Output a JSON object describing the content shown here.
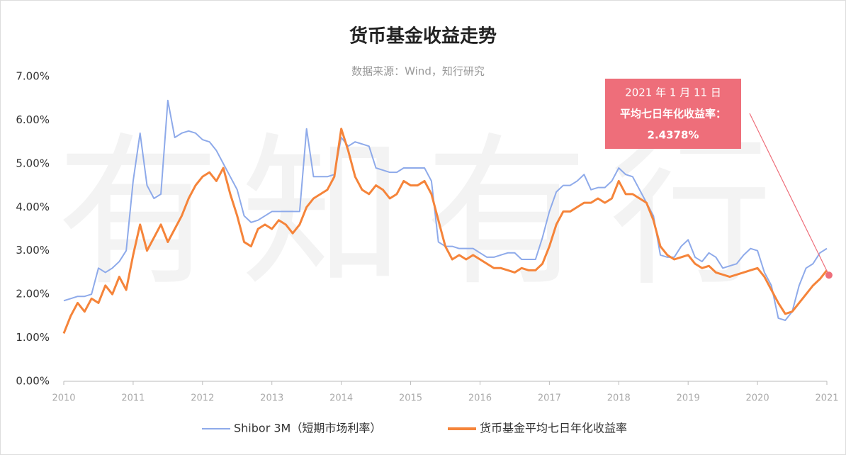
{
  "chart_data": {
    "type": "line",
    "title": "货币基金收益走势",
    "subtitle": "数据来源：Wind，知行研究",
    "watermark": "有知有行",
    "x": [
      2010,
      2010.1,
      2010.2,
      2010.3,
      2010.4,
      2010.5,
      2010.6,
      2010.7,
      2010.8,
      2010.9,
      2011,
      2011.1,
      2011.2,
      2011.3,
      2011.4,
      2011.5,
      2011.6,
      2011.7,
      2011.8,
      2011.9,
      2012,
      2012.1,
      2012.2,
      2012.3,
      2012.4,
      2012.5,
      2012.6,
      2012.7,
      2012.8,
      2012.9,
      2013,
      2013.1,
      2013.2,
      2013.3,
      2013.4,
      2013.5,
      2013.6,
      2013.7,
      2013.8,
      2013.9,
      2014,
      2014.1,
      2014.2,
      2014.3,
      2014.4,
      2014.5,
      2014.6,
      2014.7,
      2014.8,
      2014.9,
      2015,
      2015.1,
      2015.2,
      2015.3,
      2015.4,
      2015.5,
      2015.6,
      2015.7,
      2015.8,
      2015.9,
      2016,
      2016.1,
      2016.2,
      2016.3,
      2016.4,
      2016.5,
      2016.6,
      2016.7,
      2016.8,
      2016.9,
      2017,
      2017.1,
      2017.2,
      2017.3,
      2017.4,
      2017.5,
      2017.6,
      2017.7,
      2017.8,
      2017.9,
      2018,
      2018.1,
      2018.2,
      2018.3,
      2018.4,
      2018.5,
      2018.6,
      2018.7,
      2018.8,
      2018.9,
      2019,
      2019.1,
      2019.2,
      2019.3,
      2019.4,
      2019.5,
      2019.6,
      2019.7,
      2019.8,
      2019.9,
      2020,
      2020.1,
      2020.2,
      2020.3,
      2020.4,
      2020.5,
      2020.6,
      2020.7,
      2020.8,
      2020.9,
      2021
    ],
    "series": [
      {
        "name": "Shibor 3M（短期市场利率）",
        "color": "#8eaaea",
        "values": [
          1.85,
          1.9,
          1.95,
          1.95,
          2.0,
          2.6,
          2.5,
          2.6,
          2.75,
          3.0,
          4.6,
          5.7,
          4.5,
          4.2,
          4.3,
          6.45,
          5.6,
          5.7,
          5.75,
          5.7,
          5.55,
          5.5,
          5.3,
          5.0,
          4.7,
          4.4,
          3.8,
          3.65,
          3.7,
          3.8,
          3.9,
          3.9,
          3.9,
          3.9,
          3.9,
          5.8,
          4.7,
          4.7,
          4.7,
          4.75,
          5.6,
          5.4,
          5.5,
          5.45,
          5.4,
          4.9,
          4.85,
          4.8,
          4.8,
          4.9,
          4.9,
          4.9,
          4.9,
          4.6,
          3.2,
          3.1,
          3.1,
          3.05,
          3.05,
          3.05,
          2.95,
          2.85,
          2.85,
          2.9,
          2.95,
          2.95,
          2.8,
          2.8,
          2.8,
          3.3,
          3.9,
          4.35,
          4.5,
          4.5,
          4.6,
          4.75,
          4.4,
          4.45,
          4.45,
          4.6,
          4.9,
          4.75,
          4.7,
          4.4,
          4.1,
          3.8,
          2.9,
          2.85,
          2.85,
          3.1,
          3.25,
          2.85,
          2.75,
          2.95,
          2.85,
          2.6,
          2.65,
          2.7,
          2.9,
          3.05,
          3.0,
          2.5,
          2.2,
          1.45,
          1.4,
          1.6,
          2.2,
          2.6,
          2.7,
          2.95,
          3.05
        ]
      },
      {
        "name": "货币基金平均七日年化收益率",
        "color": "#f5843a",
        "values": [
          1.1,
          1.5,
          1.8,
          1.6,
          1.9,
          1.8,
          2.2,
          2.0,
          2.4,
          2.1,
          2.9,
          3.6,
          3.0,
          3.3,
          3.6,
          3.2,
          3.5,
          3.8,
          4.2,
          4.5,
          4.7,
          4.8,
          4.6,
          4.9,
          4.3,
          3.8,
          3.2,
          3.1,
          3.5,
          3.6,
          3.5,
          3.7,
          3.6,
          3.4,
          3.6,
          4.0,
          4.2,
          4.3,
          4.4,
          4.7,
          5.8,
          5.3,
          4.7,
          4.4,
          4.3,
          4.5,
          4.4,
          4.2,
          4.3,
          4.6,
          4.5,
          4.5,
          4.6,
          4.3,
          3.7,
          3.1,
          2.8,
          2.9,
          2.8,
          2.9,
          2.8,
          2.7,
          2.6,
          2.6,
          2.55,
          2.5,
          2.6,
          2.55,
          2.55,
          2.7,
          3.1,
          3.6,
          3.9,
          3.9,
          4.0,
          4.1,
          4.1,
          4.2,
          4.1,
          4.2,
          4.6,
          4.3,
          4.3,
          4.2,
          4.1,
          3.7,
          3.1,
          2.9,
          2.8,
          2.85,
          2.9,
          2.7,
          2.6,
          2.65,
          2.5,
          2.45,
          2.4,
          2.45,
          2.5,
          2.55,
          2.6,
          2.4,
          2.1,
          1.8,
          1.55,
          1.6,
          1.8,
          2.0,
          2.2,
          2.35,
          2.55
        ]
      }
    ],
    "annotation": {
      "date": "2021 年 1 月 11 日",
      "text": "平均七日年化收益率：",
      "x": 2021.03,
      "value": 2.4378,
      "value_label": "2.4378%",
      "color": "#ee6e7a"
    },
    "xlim": [
      2010,
      2021
    ],
    "xticks": [
      2010,
      2011,
      2012,
      2013,
      2014,
      2015,
      2016,
      2017,
      2018,
      2019,
      2020,
      2021
    ],
    "ylim": [
      0,
      7
    ],
    "yticks": [
      {
        "value": 0,
        "label": "0.00%"
      },
      {
        "value": 1,
        "label": "1.00%"
      },
      {
        "value": 2,
        "label": "2.00%"
      },
      {
        "value": 3,
        "label": "3.00%"
      },
      {
        "value": 4,
        "label": "4.00%"
      },
      {
        "value": 5,
        "label": "5.00%"
      },
      {
        "value": 6,
        "label": "6.00%"
      },
      {
        "value": 7,
        "label": "7.00%"
      }
    ],
    "grid": false,
    "legend": "bottom"
  }
}
